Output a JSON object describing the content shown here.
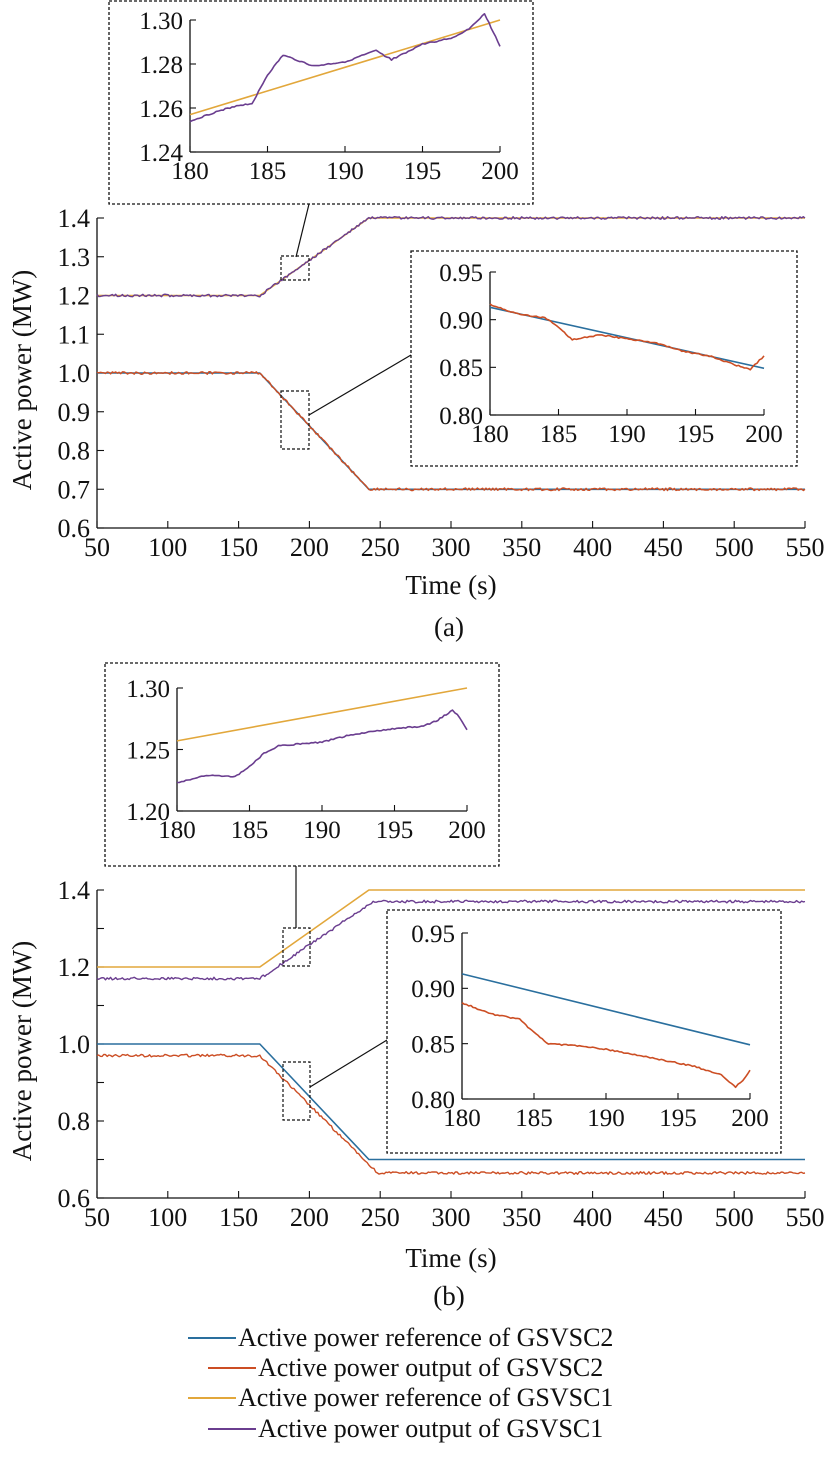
{
  "colors": {
    "ref_gsvsc2": "#2a6f9e",
    "out_gsvsc2": "#cc4e24",
    "ref_gsvsc1": "#e2a73b",
    "out_gsvsc1": "#6a3d8f"
  },
  "legend": {
    "items": [
      {
        "key": "ref_gsvsc2",
        "label": "Active power reference of GSVSC2"
      },
      {
        "key": "out_gsvsc2",
        "label": "Active power output of GSVSC2"
      },
      {
        "key": "ref_gsvsc1",
        "label": "Active power reference of GSVSC1"
      },
      {
        "key": "out_gsvsc1",
        "label": "Active power output of GSVSC1"
      }
    ]
  },
  "chart_data": [
    {
      "id": "a",
      "type": "line",
      "caption": "(a)",
      "xlabel": "Time (s)",
      "ylabel": "Active power (MW)",
      "xlim": [
        50,
        550
      ],
      "ylim": [
        0.6,
        1.4
      ],
      "xticks": [
        "50",
        "100",
        "150",
        "200",
        "250",
        "300",
        "350",
        "400",
        "450",
        "500",
        "550"
      ],
      "yticks": [
        "0.6",
        "0.7",
        "0.8",
        "0.9",
        "1.0",
        "1.1",
        "1.2",
        "1.3",
        "1.4"
      ],
      "series": [
        {
          "key": "ref_gsvsc2",
          "x": [
            50,
            165,
            242,
            550
          ],
          "y": [
            1.0,
            1.0,
            0.7,
            0.7
          ]
        },
        {
          "key": "out_gsvsc2",
          "x": [
            50,
            165,
            242,
            550
          ],
          "y": [
            1.0,
            1.0,
            0.7,
            0.7
          ]
        },
        {
          "key": "ref_gsvsc1",
          "x": [
            50,
            165,
            242,
            550
          ],
          "y": [
            1.2,
            1.2,
            1.4,
            1.4
          ]
        },
        {
          "key": "out_gsvsc1",
          "x": [
            50,
            165,
            242,
            550
          ],
          "y": [
            1.2,
            1.2,
            1.4,
            1.4
          ]
        }
      ],
      "insets": [
        {
          "xlim": [
            180,
            200
          ],
          "ylim": [
            1.24,
            1.3
          ],
          "xticks": [
            "180",
            "185",
            "190",
            "195",
            "200"
          ],
          "yticks": [
            "1.24",
            "1.26",
            "1.28",
            "1.30"
          ],
          "series": [
            {
              "key": "ref_gsvsc1",
              "x": [
                180,
                200
              ],
              "y": [
                1.257,
                1.3
              ]
            },
            {
              "key": "out_gsvsc1",
              "x": [
                180,
                182,
                183,
                184,
                185,
                186,
                188,
                190,
                192,
                193,
                195,
                197,
                198,
                199,
                200
              ],
              "y": [
                1.254,
                1.259,
                1.261,
                1.262,
                1.275,
                1.284,
                1.279,
                1.281,
                1.286,
                1.282,
                1.289,
                1.292,
                1.296,
                1.303,
                1.288
              ]
            }
          ]
        },
        {
          "xlim": [
            180,
            200
          ],
          "ylim": [
            0.8,
            0.95
          ],
          "xticks": [
            "180",
            "185",
            "190",
            "195",
            "200"
          ],
          "yticks": [
            "0.80",
            "0.85",
            "0.90",
            "0.95"
          ],
          "series": [
            {
              "key": "ref_gsvsc2",
              "x": [
                180,
                200
              ],
              "y": [
                0.913,
                0.849
              ]
            },
            {
              "key": "out_gsvsc2",
              "x": [
                180,
                182,
                184,
                185,
                186,
                188,
                190,
                192,
                194,
                196,
                198,
                199,
                199.5,
                200
              ],
              "y": [
                0.916,
                0.906,
                0.902,
                0.892,
                0.879,
                0.884,
                0.88,
                0.876,
                0.867,
                0.862,
                0.852,
                0.848,
                0.855,
                0.862
              ]
            }
          ]
        }
      ]
    },
    {
      "id": "b",
      "type": "line",
      "caption": "(b)",
      "xlabel": "Time (s)",
      "ylabel": "Active power (MW)",
      "xlim": [
        50,
        550
      ],
      "ylim": [
        0.6,
        1.4
      ],
      "xticks": [
        "50",
        "100",
        "150",
        "200",
        "250",
        "300",
        "350",
        "400",
        "450",
        "500",
        "550"
      ],
      "yticks": [
        "0.6",
        "",
        "0.8",
        "",
        "1.0",
        "",
        "1.2",
        "",
        "1.4"
      ],
      "series": [
        {
          "key": "ref_gsvsc2",
          "x": [
            50,
            165,
            242,
            550
          ],
          "y": [
            1.0,
            1.0,
            0.7,
            0.7
          ]
        },
        {
          "key": "out_gsvsc2",
          "x": [
            50,
            165,
            248,
            550
          ],
          "y": [
            0.97,
            0.97,
            0.665,
            0.665
          ]
        },
        {
          "key": "ref_gsvsc1",
          "x": [
            50,
            165,
            242,
            550
          ],
          "y": [
            1.2,
            1.2,
            1.4,
            1.4
          ]
        },
        {
          "key": "out_gsvsc1",
          "x": [
            50,
            165,
            245,
            550
          ],
          "y": [
            1.17,
            1.17,
            1.37,
            1.37
          ]
        }
      ],
      "insets": [
        {
          "xlim": [
            180,
            200
          ],
          "ylim": [
            1.2,
            1.3
          ],
          "xticks": [
            "180",
            "185",
            "190",
            "195",
            "200"
          ],
          "yticks": [
            "1.20",
            "1.25",
            "1.30"
          ],
          "series": [
            {
              "key": "ref_gsvsc1",
              "x": [
                180,
                200
              ],
              "y": [
                1.257,
                1.3
              ]
            },
            {
              "key": "out_gsvsc1",
              "x": [
                180,
                182,
                184,
                185,
                186,
                187,
                190,
                192,
                195,
                197,
                198,
                199,
                199.5,
                200
              ],
              "y": [
                1.223,
                1.229,
                1.228,
                1.236,
                1.247,
                1.253,
                1.256,
                1.262,
                1.267,
                1.269,
                1.274,
                1.282,
                1.276,
                1.266
              ]
            }
          ]
        },
        {
          "xlim": [
            180,
            200
          ],
          "ylim": [
            0.8,
            0.95
          ],
          "xticks": [
            "180",
            "185",
            "190",
            "195",
            "200"
          ],
          "yticks": [
            "0.80",
            "0.85",
            "0.90",
            "0.95"
          ],
          "series": [
            {
              "key": "ref_gsvsc2",
              "x": [
                180,
                200
              ],
              "y": [
                0.913,
                0.849
              ]
            },
            {
              "key": "out_gsvsc2",
              "x": [
                180,
                182,
                184,
                185,
                186,
                188,
                190,
                192,
                194,
                196,
                198,
                199,
                199.5,
                200
              ],
              "y": [
                0.887,
                0.877,
                0.872,
                0.86,
                0.85,
                0.848,
                0.845,
                0.84,
                0.835,
                0.83,
                0.822,
                0.811,
                0.817,
                0.826
              ]
            }
          ]
        }
      ]
    }
  ]
}
